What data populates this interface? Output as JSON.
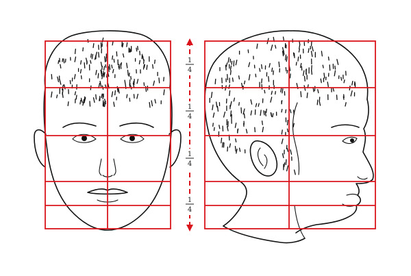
{
  "labels": {
    "fractions": [
      {
        "numerator": "1",
        "denominator": "4"
      },
      {
        "numerator": "1",
        "denominator": "4"
      },
      {
        "numerator": "1",
        "denominator": "4"
      },
      {
        "numerator": "1",
        "denominator": "4"
      }
    ]
  },
  "colors": {
    "grid": "#d9141b",
    "ink": "#111111",
    "background": "#ffffff"
  }
}
